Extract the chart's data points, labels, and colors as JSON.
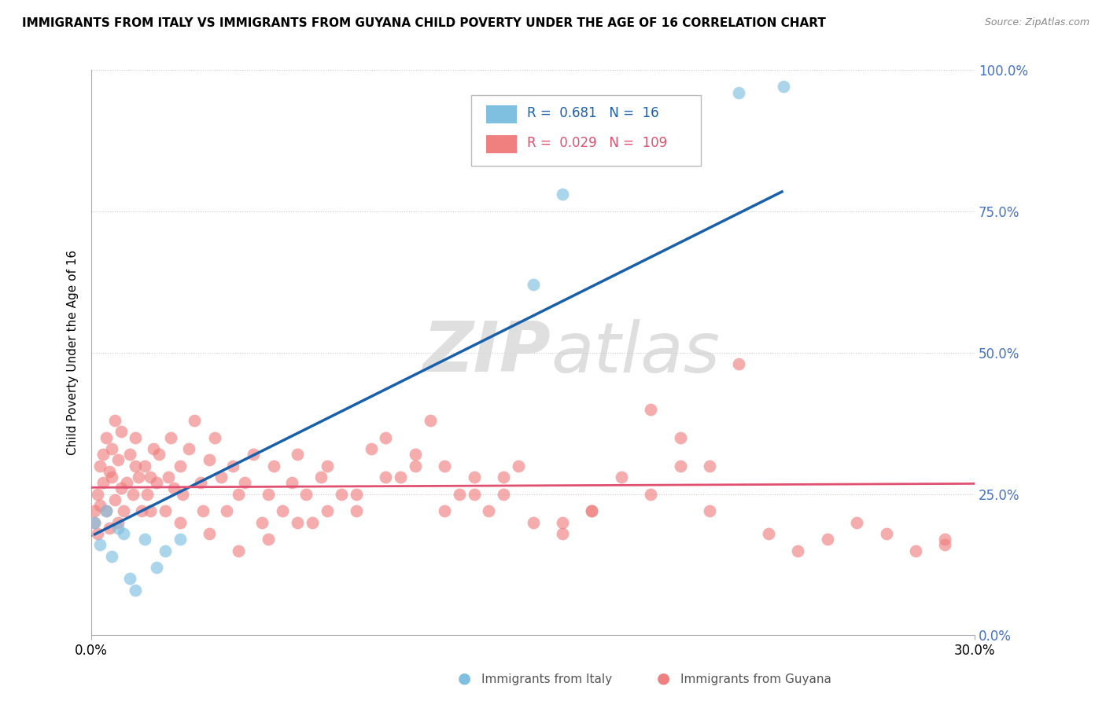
{
  "title": "IMMIGRANTS FROM ITALY VS IMMIGRANTS FROM GUYANA CHILD POVERTY UNDER THE AGE OF 16 CORRELATION CHART",
  "source": "Source: ZipAtlas.com",
  "ylabel": "Child Poverty Under the Age of 16",
  "xlim": [
    0.0,
    0.3
  ],
  "ylim": [
    0.0,
    1.0
  ],
  "italy_R": 0.681,
  "italy_N": 16,
  "guyana_R": 0.029,
  "guyana_N": 109,
  "italy_color": "#7fbfdf",
  "guyana_color": "#f08080",
  "italy_line_color": "#1a5faa",
  "guyana_line_color": "#e05070",
  "watermark_zip": "ZIP",
  "watermark_atlas": "atlas",
  "italy_scatter_x": [
    0.001,
    0.003,
    0.005,
    0.007,
    0.009,
    0.011,
    0.013,
    0.015,
    0.018,
    0.022,
    0.025,
    0.03,
    0.15,
    0.16,
    0.22,
    0.235
  ],
  "italy_scatter_y": [
    0.2,
    0.16,
    0.22,
    0.14,
    0.19,
    0.18,
    0.1,
    0.08,
    0.17,
    0.12,
    0.15,
    0.17,
    0.62,
    0.78,
    0.96,
    0.97
  ],
  "guyana_scatter_x": [
    0.001,
    0.001,
    0.002,
    0.002,
    0.003,
    0.003,
    0.004,
    0.004,
    0.005,
    0.005,
    0.006,
    0.006,
    0.007,
    0.007,
    0.008,
    0.008,
    0.009,
    0.009,
    0.01,
    0.01,
    0.011,
    0.012,
    0.013,
    0.014,
    0.015,
    0.015,
    0.016,
    0.017,
    0.018,
    0.019,
    0.02,
    0.021,
    0.022,
    0.023,
    0.025,
    0.026,
    0.027,
    0.028,
    0.03,
    0.031,
    0.033,
    0.035,
    0.037,
    0.038,
    0.04,
    0.042,
    0.044,
    0.046,
    0.048,
    0.05,
    0.052,
    0.055,
    0.058,
    0.06,
    0.062,
    0.065,
    0.068,
    0.07,
    0.073,
    0.075,
    0.078,
    0.08,
    0.085,
    0.09,
    0.095,
    0.1,
    0.105,
    0.11,
    0.115,
    0.12,
    0.125,
    0.13,
    0.135,
    0.14,
    0.145,
    0.15,
    0.16,
    0.17,
    0.18,
    0.19,
    0.2,
    0.21,
    0.22,
    0.23,
    0.24,
    0.25,
    0.26,
    0.27,
    0.28,
    0.29,
    0.29,
    0.19,
    0.2,
    0.21,
    0.16,
    0.17,
    0.13,
    0.14,
    0.11,
    0.12,
    0.09,
    0.1,
    0.07,
    0.08,
    0.05,
    0.06,
    0.04,
    0.03,
    0.02
  ],
  "guyana_scatter_y": [
    0.2,
    0.22,
    0.18,
    0.25,
    0.3,
    0.23,
    0.27,
    0.32,
    0.35,
    0.22,
    0.29,
    0.19,
    0.33,
    0.28,
    0.38,
    0.24,
    0.31,
    0.2,
    0.26,
    0.36,
    0.22,
    0.27,
    0.32,
    0.25,
    0.3,
    0.35,
    0.28,
    0.22,
    0.3,
    0.25,
    0.28,
    0.33,
    0.27,
    0.32,
    0.22,
    0.28,
    0.35,
    0.26,
    0.3,
    0.25,
    0.33,
    0.38,
    0.27,
    0.22,
    0.31,
    0.35,
    0.28,
    0.22,
    0.3,
    0.25,
    0.27,
    0.32,
    0.2,
    0.25,
    0.3,
    0.22,
    0.27,
    0.32,
    0.25,
    0.2,
    0.28,
    0.3,
    0.25,
    0.22,
    0.33,
    0.35,
    0.28,
    0.32,
    0.38,
    0.3,
    0.25,
    0.28,
    0.22,
    0.25,
    0.3,
    0.2,
    0.18,
    0.22,
    0.28,
    0.25,
    0.3,
    0.22,
    0.48,
    0.18,
    0.15,
    0.17,
    0.2,
    0.18,
    0.15,
    0.17,
    0.16,
    0.4,
    0.35,
    0.3,
    0.2,
    0.22,
    0.25,
    0.28,
    0.3,
    0.22,
    0.25,
    0.28,
    0.2,
    0.22,
    0.15,
    0.17,
    0.18,
    0.2,
    0.22
  ]
}
